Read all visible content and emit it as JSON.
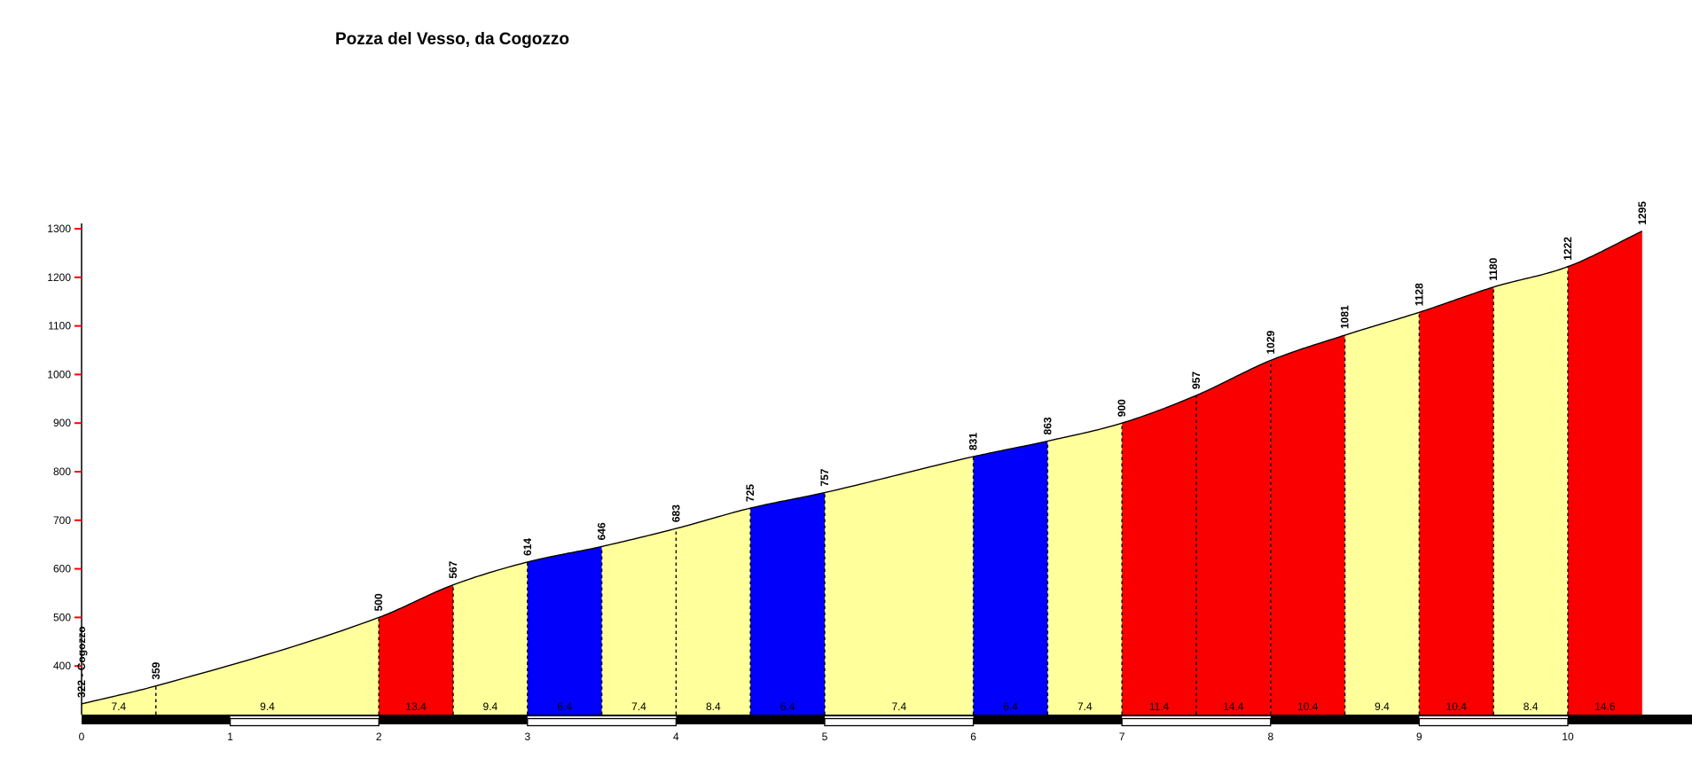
{
  "title": "Pozza del Vesso, da Cogozzo",
  "chart_data": {
    "type": "area",
    "title": "Pozza del Vesso, da Cogozzo",
    "x_unit": "km",
    "y_unit": "m",
    "xlim": [
      0,
      10.5
    ],
    "ylim": [
      300,
      1300
    ],
    "x_ticks": [
      0,
      1,
      2,
      3,
      4,
      5,
      6,
      7,
      8,
      9,
      10
    ],
    "y_ticks": [
      400,
      500,
      600,
      700,
      800,
      900,
      1000,
      1100,
      1200,
      1300
    ],
    "grid": false,
    "legend": false,
    "start_label": "322 - Cogozzo",
    "points": [
      {
        "km": 0,
        "elev": 322,
        "label": "322 - Cogozzo"
      },
      {
        "km": 0.5,
        "elev": 359,
        "label": "359"
      },
      {
        "km": 2,
        "elev": 500,
        "label": "500"
      },
      {
        "km": 2.5,
        "elev": 567,
        "label": "567"
      },
      {
        "km": 3,
        "elev": 614,
        "label": "614"
      },
      {
        "km": 3.5,
        "elev": 646,
        "label": "646"
      },
      {
        "km": 4,
        "elev": 683,
        "label": "683"
      },
      {
        "km": 4.5,
        "elev": 725,
        "label": "725"
      },
      {
        "km": 5,
        "elev": 757,
        "label": "757"
      },
      {
        "km": 6,
        "elev": 831,
        "label": "831"
      },
      {
        "km": 6.5,
        "elev": 863,
        "label": "863"
      },
      {
        "km": 7,
        "elev": 900,
        "label": "900"
      },
      {
        "km": 7.5,
        "elev": 957,
        "label": "957"
      },
      {
        "km": 8,
        "elev": 1029,
        "label": "1029"
      },
      {
        "km": 8.5,
        "elev": 1081,
        "label": "1081"
      },
      {
        "km": 9,
        "elev": 1128,
        "label": "1128"
      },
      {
        "km": 9.5,
        "elev": 1180,
        "label": "1180"
      },
      {
        "km": 10,
        "elev": 1222,
        "label": "1222"
      },
      {
        "km": 10.5,
        "elev": 1295,
        "label": "1295"
      }
    ],
    "segments": [
      {
        "from": 0,
        "to": 0.5,
        "gradient": "7.4",
        "color": "yellow"
      },
      {
        "from": 0.5,
        "to": 2,
        "gradient": "9.4",
        "color": "yellow"
      },
      {
        "from": 2,
        "to": 2.5,
        "gradient": "13.4",
        "color": "red"
      },
      {
        "from": 2.5,
        "to": 3,
        "gradient": "9.4",
        "color": "yellow"
      },
      {
        "from": 3,
        "to": 3.5,
        "gradient": "6.4",
        "color": "blue"
      },
      {
        "from": 3.5,
        "to": 4,
        "gradient": "7.4",
        "color": "yellow"
      },
      {
        "from": 4,
        "to": 4.5,
        "gradient": "8.4",
        "color": "yellow"
      },
      {
        "from": 4.5,
        "to": 5,
        "gradient": "6.4",
        "color": "blue"
      },
      {
        "from": 5,
        "to": 6,
        "gradient": "7.4",
        "color": "yellow"
      },
      {
        "from": 6,
        "to": 6.5,
        "gradient": "6.4",
        "color": "blue"
      },
      {
        "from": 6.5,
        "to": 7,
        "gradient": "7.4",
        "color": "yellow"
      },
      {
        "from": 7,
        "to": 7.5,
        "gradient": "11.4",
        "color": "red"
      },
      {
        "from": 7.5,
        "to": 8,
        "gradient": "14.4",
        "color": "red"
      },
      {
        "from": 8,
        "to": 8.5,
        "gradient": "10.4",
        "color": "red"
      },
      {
        "from": 8.5,
        "to": 9,
        "gradient": "9.4",
        "color": "yellow"
      },
      {
        "from": 9,
        "to": 9.5,
        "gradient": "10.4",
        "color": "red"
      },
      {
        "from": 9.5,
        "to": 10,
        "gradient": "8.4",
        "color": "yellow"
      },
      {
        "from": 10,
        "to": 10.5,
        "gradient": "14.6",
        "color": "red"
      }
    ],
    "colors": {
      "yellow": "#FFFF9C",
      "red": "#FB0000",
      "blue": "#0000FB",
      "tick": "#FF0000",
      "line": "#000000",
      "background": "#FFFFFF"
    }
  }
}
